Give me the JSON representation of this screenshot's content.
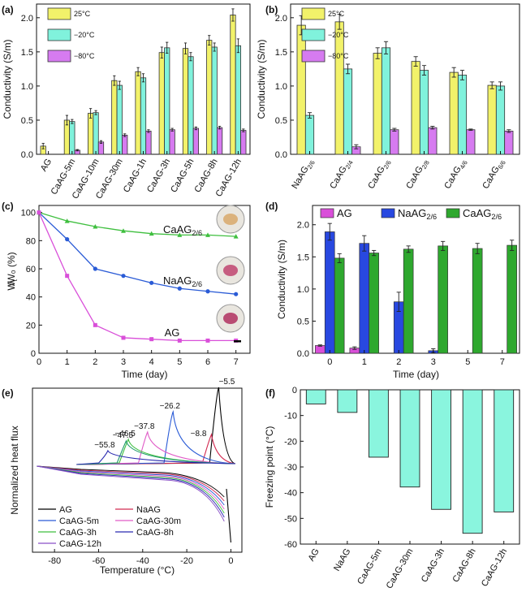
{
  "colors": {
    "yellow": "#f2f26a",
    "cyan": "#80f2dc",
    "violet": "#d67bf0",
    "blue": "#2848e0",
    "green": "#2ea82e",
    "magenta": "#d94fd9",
    "cyanbar": "#8af5de",
    "axis": "#111111"
  },
  "chart_data": [
    {
      "panel": "(a)",
      "type": "bar",
      "ylabel": "Conductivity (S/m)",
      "ylim": [
        0,
        2.2
      ],
      "yticks": [
        "0.0",
        "0.5",
        "1.0",
        "1.5",
        "2.0"
      ],
      "categories": [
        "AG",
        "CaAG-5m",
        "CaAG-10m",
        "CaAG-30m",
        "CaAG-1h",
        "CaAG-3h",
        "CaAG-5h",
        "CaAG-8h",
        "CaAG-12h"
      ],
      "legend": [
        "25°C",
        "−20°C",
        "−80°C"
      ],
      "series": [
        {
          "name": "25°C",
          "values": [
            0.12,
            0.5,
            0.6,
            1.08,
            1.21,
            1.49,
            1.55,
            1.67,
            2.04
          ],
          "err": [
            0.04,
            0.07,
            0.07,
            0.07,
            0.06,
            0.08,
            0.08,
            0.07,
            0.09
          ]
        },
        {
          "name": "−20°C",
          "values": [
            null,
            0.48,
            0.61,
            1.01,
            1.12,
            1.56,
            1.43,
            1.57,
            1.59
          ],
          "err": [
            null,
            0.03,
            0.03,
            0.06,
            0.06,
            0.08,
            0.06,
            0.06,
            0.1
          ]
        },
        {
          "name": "−80°C",
          "values": [
            null,
            0.06,
            0.18,
            0.28,
            0.34,
            0.36,
            0.38,
            0.39,
            0.35
          ],
          "err": [
            null,
            0.01,
            0.02,
            0.02,
            0.02,
            0.02,
            0.02,
            0.02,
            0.02
          ]
        }
      ]
    },
    {
      "panel": "(b)",
      "type": "bar",
      "ylabel": "Conductivity (S/m)",
      "ylim": [
        0,
        2.2
      ],
      "yticks": [
        "0.0",
        "0.5",
        "1.0",
        "1.5",
        "2.0"
      ],
      "categories": [
        {
          "main": "NaAG",
          "sub": "2/6"
        },
        {
          "main": "CaAG",
          "sub": "2/4"
        },
        {
          "main": "CaAG",
          "sub": "2/6"
        },
        {
          "main": "CaAG",
          "sub": "2/8"
        },
        {
          "main": "CaAG",
          "sub": "4/6"
        },
        {
          "main": "CaAG",
          "sub": "6/6"
        }
      ],
      "legend": [
        "25°C",
        "−20°C",
        "−80°C"
      ],
      "series": [
        {
          "name": "25°C",
          "values": [
            1.89,
            1.94,
            1.48,
            1.36,
            1.2,
            1.01
          ],
          "err": [
            0.14,
            0.11,
            0.08,
            0.07,
            0.07,
            0.05
          ]
        },
        {
          "name": "−20°C",
          "values": [
            0.57,
            1.25,
            1.56,
            1.23,
            1.16,
            1.0
          ],
          "err": [
            0.04,
            0.07,
            0.09,
            0.07,
            0.07,
            0.06
          ]
        },
        {
          "name": "−80°C",
          "values": [
            null,
            0.11,
            0.36,
            0.39,
            0.36,
            0.34
          ],
          "err": [
            null,
            0.03,
            0.02,
            0.02,
            0.01,
            0.02
          ]
        }
      ]
    },
    {
      "panel": "(c)",
      "type": "line",
      "xlabel": "Time (day)",
      "ylabel": "Wₜ/W₀ (%)",
      "xlim": [
        0,
        7.5
      ],
      "ylim": [
        0,
        105
      ],
      "xticks": [
        "0",
        "1",
        "2",
        "3",
        "4",
        "5",
        "6",
        "7"
      ],
      "yticks": [
        "0",
        "20",
        "40",
        "60",
        "80",
        "100"
      ],
      "x": [
        0,
        1,
        2,
        3,
        4,
        5,
        6,
        7
      ],
      "series": [
        {
          "name": "CaAG",
          "sub": "2/6",
          "values": [
            100,
            94,
            90,
            87,
            85,
            84,
            84,
            83
          ]
        },
        {
          "name": "NaAG",
          "sub": "2/6",
          "values": [
            100,
            81,
            60,
            55,
            50,
            46,
            44,
            42
          ]
        },
        {
          "name": "AG",
          "sub": "",
          "values": [
            100,
            55,
            20,
            11,
            10,
            9,
            9,
            9
          ]
        }
      ]
    },
    {
      "panel": "(d)",
      "type": "bar",
      "xlabel": "Time (day)",
      "ylabel": "Conductivity (S/m)",
      "ylim": [
        0,
        2.3
      ],
      "yticks": [
        "0.0",
        "0.5",
        "1.0",
        "1.5",
        "2.0"
      ],
      "categories": [
        "0",
        "1",
        "2",
        "3",
        "5",
        "7"
      ],
      "legend": [
        {
          "main": "AG",
          "sub": ""
        },
        {
          "main": "NaAG",
          "sub": "2/6"
        },
        {
          "main": "CaAG",
          "sub": "2/6"
        }
      ],
      "series": [
        {
          "name": "AG",
          "values": [
            0.12,
            0.08,
            null,
            null,
            null,
            null
          ],
          "err": [
            0.01,
            0.02,
            null,
            null,
            null,
            null
          ]
        },
        {
          "name": "NaAG2/6",
          "values": [
            1.89,
            1.71,
            0.8,
            0.04,
            null,
            null
          ],
          "err": [
            0.13,
            0.12,
            0.15,
            0.03,
            null,
            null
          ]
        },
        {
          "name": "CaAG2/6",
          "values": [
            1.48,
            1.56,
            1.62,
            1.67,
            1.63,
            1.68
          ],
          "err": [
            0.07,
            0.04,
            0.05,
            0.07,
            0.08,
            0.08
          ]
        }
      ]
    },
    {
      "panel": "(e)",
      "type": "line",
      "xlabel": "Temperature (°C)",
      "ylabel": "Normalized heat flux",
      "xlim": [
        -90,
        5
      ],
      "xticks": [
        "-80",
        "-60",
        "-40",
        "-20",
        "0"
      ],
      "peak_labels": [
        "−5.5",
        "−8.8",
        "−26.2",
        "−37.8",
        "−46.5",
        "−47.5",
        "−55.8"
      ],
      "peaks": [
        -5.5,
        -8.8,
        -26.2,
        -37.8,
        -46.5,
        -47.5,
        -55.8
      ],
      "legend": [
        "AG",
        "NaAG",
        "CaAG-5m",
        "CaAG-30m",
        "CaAG-3h",
        "CaAG-8h",
        "CaAG-12h"
      ],
      "legend_colors": [
        "#000000",
        "#d22b52",
        "#2a5bd6",
        "#e05cc7",
        "#3fbf3f",
        "#2a2ab0",
        "#8a4fc7"
      ]
    },
    {
      "panel": "(f)",
      "type": "bar",
      "ylabel": "Freezing point (°C)",
      "ylim": [
        -60,
        0
      ],
      "yticks": [
        "0",
        "-10",
        "-20",
        "-30",
        "-40",
        "-50",
        "-60"
      ],
      "categories": [
        "AG",
        "NaAG",
        "CaAG-5m",
        "CaAG-30m",
        "CaAG-3h",
        "CaAG-8h",
        "CaAG-12h"
      ],
      "values": [
        -5.5,
        -8.8,
        -26.2,
        -37.8,
        -46.5,
        -55.8,
        -47.5
      ]
    }
  ]
}
